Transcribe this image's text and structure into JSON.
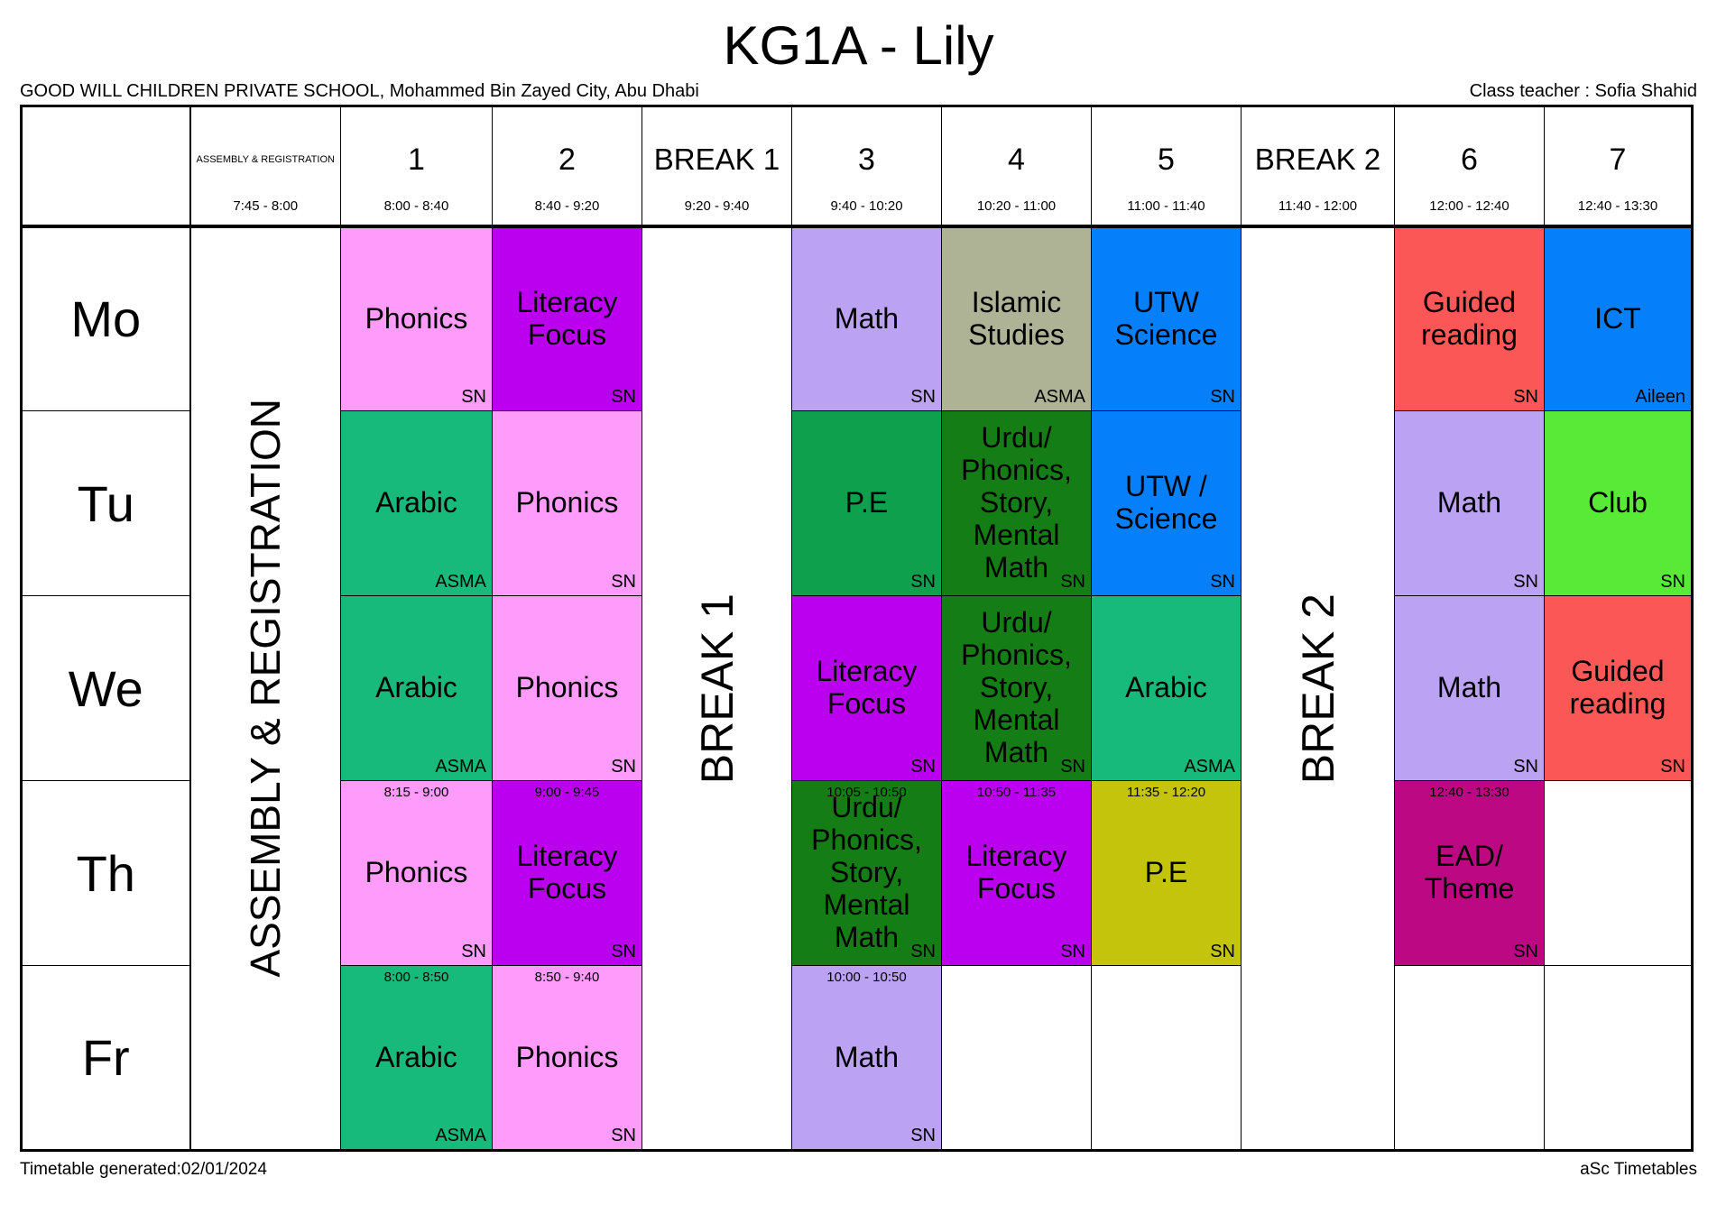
{
  "title": "KG1A - Lily",
  "school": "GOOD WILL CHILDREN PRIVATE SCHOOL, Mohammed Bin Zayed City, Abu Dhabi",
  "teacher_label": "Class teacher : Sofia Shahid",
  "footer": {
    "left": "Timetable generated:02/01/2024",
    "right": "aSc Timetables"
  },
  "assembly": {
    "label": "ASSEMBLY & REGISTRATION",
    "time": "7:45 - 8:00"
  },
  "days": [
    "Mo",
    "Tu",
    "We",
    "Th",
    "Fr"
  ],
  "header": {
    "periods": [
      {
        "label": "1",
        "time": "8:00 - 8:40",
        "break": false
      },
      {
        "label": "2",
        "time": "8:40 - 9:20",
        "break": false
      },
      {
        "label": "BREAK 1",
        "time": "9:20 - 9:40",
        "break": true
      },
      {
        "label": "3",
        "time": "9:40 - 10:20",
        "break": false
      },
      {
        "label": "4",
        "time": "10:20 - 11:00",
        "break": false
      },
      {
        "label": "5",
        "time": "11:00 - 11:40",
        "break": false
      },
      {
        "label": "BREAK 2",
        "time": "11:40 - 12:00",
        "break": true
      },
      {
        "label": "6",
        "time": "12:00 - 12:40",
        "break": false
      },
      {
        "label": "7",
        "time": "12:40 - 13:30",
        "break": false
      }
    ]
  },
  "colors": {
    "pink": "#FF9BFA",
    "purple": "#BB00F0",
    "lilac": "#BCA2F2",
    "sage": "#AEB396",
    "blue": "#0680FA",
    "red": "#FC5757",
    "emerald": "#17BA7A",
    "green": "#0FA04E",
    "darkgreen": "#157D15",
    "clubgreen": "#58EA36",
    "olive": "#C4C40D",
    "magenta": "#BC0983"
  },
  "grid": {
    "rows": [
      {
        "day": "Mo",
        "cells": [
          {
            "subject": "Phonics",
            "teacher": "SN",
            "color": "pink"
          },
          {
            "subject": "Literacy Focus",
            "teacher": "SN",
            "color": "purple"
          },
          {
            "subject": "Math",
            "teacher": "SN",
            "color": "lilac"
          },
          {
            "subject": "Islamic Studies",
            "teacher": "ASMA",
            "color": "sage"
          },
          {
            "subject": "UTW Science",
            "teacher": "SN",
            "color": "blue"
          },
          {
            "subject": "Guided reading",
            "teacher": "SN",
            "color": "red"
          },
          {
            "subject": "ICT",
            "teacher": "Aileen",
            "color": "blue"
          }
        ]
      },
      {
        "day": "Tu",
        "cells": [
          {
            "subject": "Arabic",
            "teacher": "ASMA",
            "color": "emerald"
          },
          {
            "subject": "Phonics",
            "teacher": "SN",
            "color": "pink"
          },
          {
            "subject": "P.E",
            "teacher": "SN",
            "color": "green"
          },
          {
            "subject": "Urdu/ Phonics, Story, Mental Math",
            "teacher": "SN",
            "color": "darkgreen"
          },
          {
            "subject": "UTW / Science",
            "teacher": "SN",
            "color": "blue"
          },
          {
            "subject": "Math",
            "teacher": "SN",
            "color": "lilac"
          },
          {
            "subject": "Club",
            "teacher": "SN",
            "color": "clubgreen"
          }
        ]
      },
      {
        "day": "We",
        "cells": [
          {
            "subject": "Arabic",
            "teacher": "ASMA",
            "color": "emerald"
          },
          {
            "subject": "Phonics",
            "teacher": "SN",
            "color": "pink"
          },
          {
            "subject": "Literacy Focus",
            "teacher": "SN",
            "color": "purple"
          },
          {
            "subject": "Urdu/ Phonics, Story, Mental Math",
            "teacher": "SN",
            "color": "darkgreen"
          },
          {
            "subject": "Arabic",
            "teacher": "ASMA",
            "color": "emerald"
          },
          {
            "subject": "Math",
            "teacher": "SN",
            "color": "lilac"
          },
          {
            "subject": "Guided reading",
            "teacher": "SN",
            "color": "red"
          }
        ]
      },
      {
        "day": "Th",
        "cells": [
          {
            "subject": "Phonics",
            "teacher": "SN",
            "color": "pink",
            "time": "8:15 - 9:00"
          },
          {
            "subject": "Literacy Focus",
            "teacher": "SN",
            "color": "purple",
            "time": "9:00 - 9:45"
          },
          {
            "subject": "Urdu/ Phonics, Story, Mental Math",
            "teacher": "SN",
            "color": "darkgreen",
            "time": "10:05 - 10:50"
          },
          {
            "subject": "Literacy Focus",
            "teacher": "SN",
            "color": "purple",
            "time": "10:50 - 11:35"
          },
          {
            "subject": "P.E",
            "teacher": "SN",
            "color": "olive",
            "time": "11:35 - 12:20"
          },
          {
            "subject": "EAD/ Theme",
            "teacher": "SN",
            "color": "magenta",
            "time": "12:40 - 13:30"
          },
          null
        ]
      },
      {
        "day": "Fr",
        "cells": [
          {
            "subject": "Arabic",
            "teacher": "ASMA",
            "color": "emerald",
            "time": "8:00 - 8:50"
          },
          {
            "subject": "Phonics",
            "teacher": "SN",
            "color": "pink",
            "time": "8:50 - 9:40"
          },
          {
            "subject": "Math",
            "teacher": "SN",
            "color": "lilac",
            "time": "10:00 - 10:50"
          },
          null,
          null,
          null,
          null
        ]
      }
    ]
  }
}
